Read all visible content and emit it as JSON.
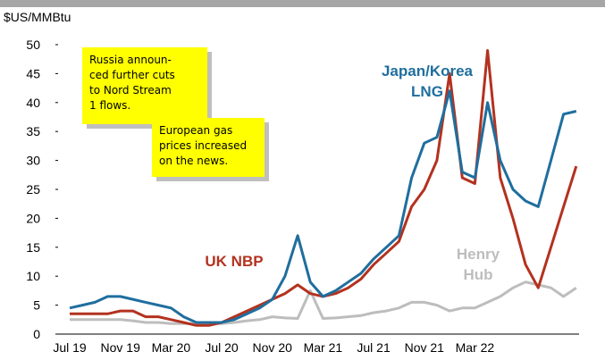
{
  "chart_data": {
    "type": "line",
    "y_label": "$US/MMBtu",
    "categories": [
      "Jul 19",
      null,
      null,
      null,
      "Nov 19",
      null,
      null,
      null,
      "Mar 20",
      null,
      null,
      null,
      "Jul 20",
      null,
      null,
      null,
      "Nov 20",
      null,
      null,
      null,
      "Mar 21",
      null,
      null,
      null,
      "Jul 21",
      null,
      null,
      null,
      "Nov 21",
      null,
      null,
      null,
      "Mar 22",
      null,
      null,
      null,
      null,
      null,
      null,
      null,
      null
    ],
    "series": [
      {
        "name": "Henry Hub",
        "color": "#bdbdbd",
        "values": [
          2.5,
          2.5,
          2.5,
          2.5,
          2.5,
          2.3,
          2,
          2,
          1.8,
          1.8,
          1.8,
          1.8,
          1.8,
          2,
          2.3,
          2.5,
          3,
          2.8,
          2.7,
          7.5,
          2.7,
          2.8,
          3,
          3.2,
          3.7,
          4,
          4.5,
          5.5,
          5.5,
          5,
          4,
          4.5,
          4.5,
          5.5,
          6.5,
          8,
          9,
          8.5,
          8,
          6.5,
          8
        ]
      },
      {
        "name": "UK NBP",
        "color": "#b3321f",
        "values": [
          3.5,
          3.5,
          3.5,
          3.5,
          4,
          4,
          3,
          3,
          2.5,
          2,
          1.5,
          1.5,
          2,
          3,
          4,
          5,
          6,
          7,
          8.5,
          7,
          6.5,
          7,
          8,
          9.5,
          12,
          14,
          16,
          22,
          25,
          30,
          45,
          27,
          26,
          49,
          27,
          20,
          12,
          8,
          15,
          22,
          29
        ]
      },
      {
        "name": "Japan/Korea LNG",
        "color": "#1f6e9e",
        "values": [
          4.5,
          5,
          5.5,
          6.5,
          6.5,
          6,
          5.5,
          5,
          4.5,
          3,
          2,
          2,
          2,
          2.5,
          3.5,
          4.5,
          6,
          10,
          17,
          9,
          6.5,
          7.5,
          9,
          10.5,
          13,
          15,
          17,
          27,
          33,
          34,
          42,
          28,
          27,
          40,
          30,
          25,
          23,
          22,
          30,
          38,
          38.5
        ]
      }
    ],
    "ylim": [
      0,
      50
    ],
    "yticks": [
      0,
      5,
      10,
      15,
      20,
      25,
      30,
      35,
      40,
      45,
      50
    ],
    "annotations": [
      {
        "lines": [
          "Russia announ-",
          "ced further cuts",
          "to Nord Stream",
          "1 flows."
        ]
      },
      {
        "lines": [
          "European gas",
          "prices increased",
          "on the news."
        ]
      }
    ]
  }
}
